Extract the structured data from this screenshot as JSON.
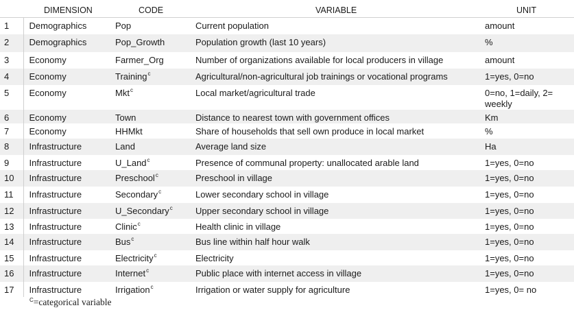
{
  "headers": {
    "num": "",
    "dimension": "DIMENSION",
    "code": "CODE",
    "variable": "VARIABLE",
    "unit": "UNIT"
  },
  "rows": [
    {
      "n": "1",
      "dimension": "Demographics",
      "code": "Pop",
      "cat": false,
      "variable": "Current population",
      "unit": "amount"
    },
    {
      "n": "2",
      "dimension": "Demographics",
      "code": "Pop_Growth",
      "cat": false,
      "variable": "Population growth (last 10 years)",
      "unit": "%"
    },
    {
      "n": "3",
      "dimension": "Economy",
      "code": "Farmer_Org",
      "cat": false,
      "variable": "Number of organizations available for local producers in village",
      "unit": "amount"
    },
    {
      "n": "4",
      "dimension": "Economy",
      "code": "Training",
      "cat": true,
      "variable": "Agricultural/non-agricultural job trainings or vocational programs",
      "unit": "1=yes, 0=no"
    },
    {
      "n": "5",
      "dimension": "Economy",
      "code": "Mkt",
      "cat": true,
      "variable": "Local market/agricultural trade",
      "unit": "0=no, 1=daily, 2= weekly"
    },
    {
      "n": "6",
      "dimension": "Economy",
      "code": "Town",
      "cat": false,
      "variable": "Distance to nearest town with government offices",
      "unit": "Km"
    },
    {
      "n": "7",
      "dimension": "Economy",
      "code": "HHMkt",
      "cat": false,
      "variable": "Share of households that sell own produce in local market",
      "unit": "%"
    },
    {
      "n": "8",
      "dimension": "Infrastructure",
      "code": "Land",
      "cat": false,
      "variable": "Average land size",
      "unit": "Ha"
    },
    {
      "n": "9",
      "dimension": "Infrastructure",
      "code": "U_Land",
      "cat": true,
      "variable": "Presence of communal property: unallocated arable land",
      "unit": "1=yes, 0=no"
    },
    {
      "n": "10",
      "dimension": "Infrastructure",
      "code": "Preschool",
      "cat": true,
      "variable": "Preschool in village",
      "unit": "1=yes, 0=no"
    },
    {
      "n": "11",
      "dimension": "Infrastructure",
      "code": "Secondary",
      "cat": true,
      "variable": "Lower secondary school in village",
      "unit": "1=yes, 0=no"
    },
    {
      "n": "12",
      "dimension": "Infrastructure",
      "code": "U_Secondary",
      "cat": true,
      "variable": "Upper secondary school in village",
      "unit": "1=yes, 0=no"
    },
    {
      "n": "13",
      "dimension": "Infrastructure",
      "code": "Clinic",
      "cat": true,
      "variable": "Health clinic in village",
      "unit": "1=yes, 0=no"
    },
    {
      "n": "14",
      "dimension": "Infrastructure",
      "code": "Bus",
      "cat": true,
      "variable": "Bus line within half hour walk",
      "unit": "1=yes, 0=no"
    },
    {
      "n": "15",
      "dimension": "Infrastructure",
      "code": "Electricity",
      "cat": true,
      "variable": "Electricity",
      "unit": "1=yes, 0=no"
    },
    {
      "n": "16",
      "dimension": "Infrastructure",
      "code": "Internet",
      "cat": true,
      "variable": "Public place with internet access in village",
      "unit": "1=yes, 0=no"
    },
    {
      "n": "17",
      "dimension": "Infrastructure",
      "code": "Irrigation",
      "cat": true,
      "variable": "Irrigation or water supply for agriculture",
      "unit": "1=yes, 0= no"
    }
  ],
  "superscript": "c",
  "footnote": {
    "mark": "C",
    "text": "=categorical variable"
  }
}
